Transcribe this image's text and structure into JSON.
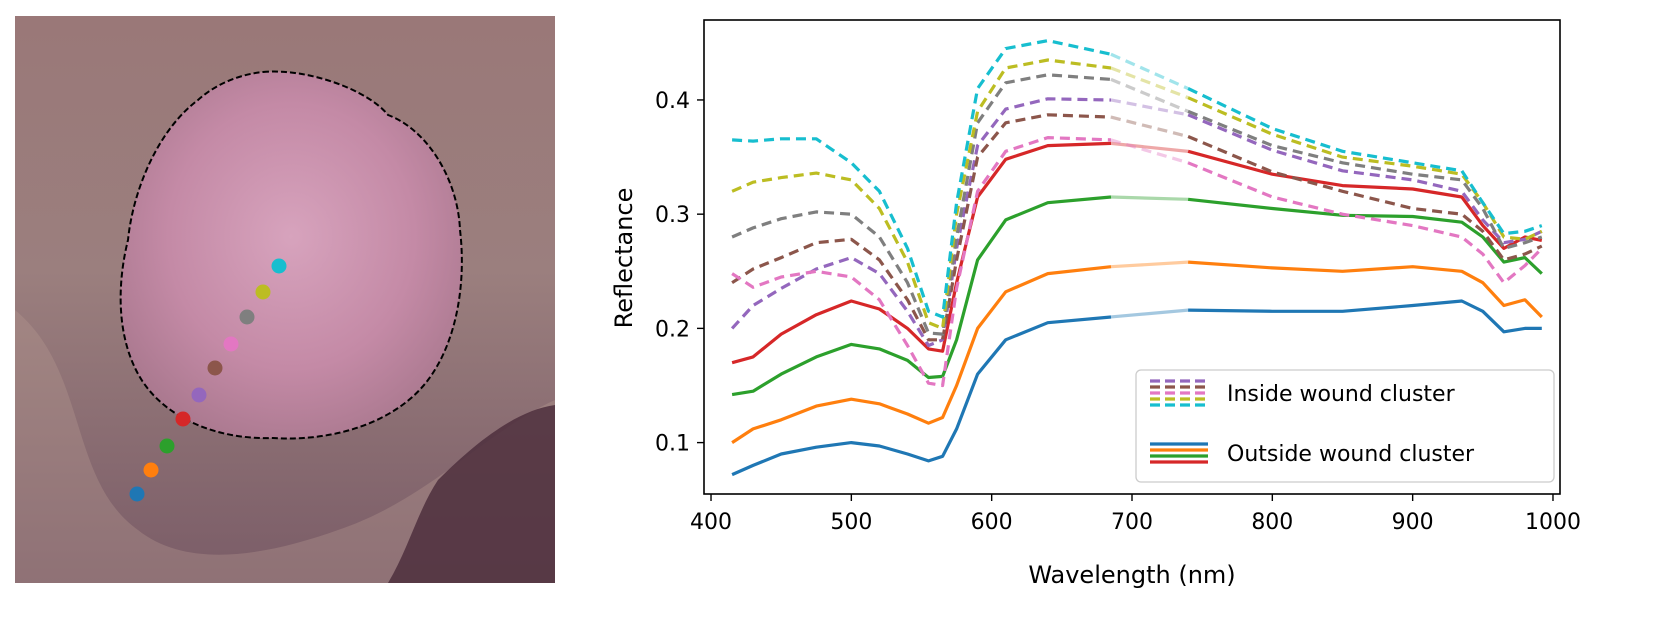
{
  "colors": {
    "blue": "#1f77b4",
    "orange": "#ff7f0e",
    "green": "#2ca02c",
    "red": "#d62728",
    "purple": "#9467bd",
    "brown": "#8c564b",
    "pink": "#e377c2",
    "gray": "#7f7f7f",
    "olive": "#bcbd22",
    "cyan": "#17becf",
    "wound_outline": "#000000",
    "tissue_background": "#8a6b72",
    "wound_fill": "#c48aa6"
  },
  "wound_image": {
    "markers": [
      {
        "color": "#1f77b4"
      },
      {
        "color": "#ff7f0e"
      },
      {
        "color": "#2ca02c"
      },
      {
        "color": "#d62728"
      },
      {
        "color": "#9467bd"
      },
      {
        "color": "#8c564b"
      },
      {
        "color": "#e377c2"
      },
      {
        "color": "#7f7f7f"
      },
      {
        "color": "#bcbd22"
      },
      {
        "color": "#17becf"
      }
    ]
  },
  "chart_data": {
    "type": "line",
    "title": "",
    "xlabel": "Wavelength (nm)",
    "ylabel": "Reflectance",
    "xlim": [
      395,
      1005
    ],
    "ylim": [
      0.055,
      0.47
    ],
    "xticks": [
      400,
      500,
      600,
      700,
      800,
      900,
      1000
    ],
    "yticks": [
      0.1,
      0.2,
      0.3,
      0.4
    ],
    "xtick_labels": [
      "400",
      "500",
      "600",
      "700",
      "800",
      "900",
      "1000"
    ],
    "ytick_labels": [
      "0.1",
      "0.2",
      "0.3",
      "0.4"
    ],
    "grid": false,
    "legend_position": "lower-right",
    "gap_band_nm": [
      685,
      740
    ],
    "x": [
      415,
      430,
      450,
      475,
      500,
      520,
      540,
      555,
      565,
      575,
      590,
      610,
      640,
      685,
      740,
      800,
      850,
      900,
      935,
      950,
      965,
      980,
      992
    ],
    "legend": [
      {
        "label": "Inside wound cluster",
        "style": "dashed",
        "colors": [
          "#9467bd",
          "#8c564b",
          "#e377c2",
          "#bcbd22",
          "#17becf"
        ]
      },
      {
        "label": "Outside wound cluster",
        "style": "solid",
        "colors": [
          "#1f77b4",
          "#ff7f0e",
          "#2ca02c",
          "#d62728"
        ]
      }
    ],
    "series": [
      {
        "color": "#1f77b4",
        "style": "solid",
        "values": [
          0.072,
          0.08,
          0.09,
          0.096,
          0.1,
          0.097,
          0.09,
          0.084,
          0.088,
          0.112,
          0.16,
          0.19,
          0.205,
          0.21,
          0.216,
          0.215,
          0.215,
          0.22,
          0.224,
          0.215,
          0.197,
          0.2,
          0.2
        ]
      },
      {
        "color": "#ff7f0e",
        "style": "solid",
        "values": [
          0.1,
          0.112,
          0.12,
          0.132,
          0.138,
          0.134,
          0.125,
          0.117,
          0.122,
          0.15,
          0.2,
          0.232,
          0.248,
          0.254,
          0.258,
          0.253,
          0.25,
          0.254,
          0.25,
          0.24,
          0.22,
          0.225,
          0.21
        ]
      },
      {
        "color": "#2ca02c",
        "style": "solid",
        "values": [
          0.142,
          0.145,
          0.16,
          0.175,
          0.186,
          0.182,
          0.172,
          0.157,
          0.158,
          0.19,
          0.26,
          0.295,
          0.31,
          0.315,
          0.313,
          0.305,
          0.299,
          0.298,
          0.293,
          0.28,
          0.258,
          0.262,
          0.248
        ]
      },
      {
        "color": "#d62728",
        "style": "solid",
        "values": [
          0.17,
          0.175,
          0.195,
          0.212,
          0.224,
          0.217,
          0.2,
          0.182,
          0.18,
          0.24,
          0.315,
          0.348,
          0.36,
          0.362,
          0.355,
          0.335,
          0.325,
          0.322,
          0.315,
          0.29,
          0.27,
          0.28,
          0.277
        ]
      },
      {
        "color": "#9467bd",
        "style": "dashed",
        "values": [
          0.2,
          0.22,
          0.235,
          0.252,
          0.262,
          0.248,
          0.215,
          0.185,
          0.19,
          0.27,
          0.36,
          0.392,
          0.401,
          0.4,
          0.387,
          0.356,
          0.338,
          0.33,
          0.32,
          0.295,
          0.275,
          0.278,
          0.285
        ]
      },
      {
        "color": "#8c564b",
        "style": "dashed",
        "values": [
          0.24,
          0.252,
          0.262,
          0.275,
          0.278,
          0.26,
          0.225,
          0.19,
          0.19,
          0.26,
          0.35,
          0.38,
          0.387,
          0.385,
          0.368,
          0.337,
          0.32,
          0.305,
          0.3,
          0.285,
          0.26,
          0.265,
          0.272
        ]
      },
      {
        "color": "#e377c2",
        "style": "dashed",
        "values": [
          0.248,
          0.236,
          0.245,
          0.25,
          0.245,
          0.225,
          0.185,
          0.152,
          0.15,
          0.235,
          0.32,
          0.355,
          0.367,
          0.365,
          0.345,
          0.315,
          0.3,
          0.29,
          0.28,
          0.265,
          0.24,
          0.255,
          0.27
        ]
      },
      {
        "color": "#7f7f7f",
        "style": "dashed",
        "values": [
          0.28,
          0.288,
          0.296,
          0.302,
          0.3,
          0.28,
          0.24,
          0.196,
          0.195,
          0.28,
          0.38,
          0.415,
          0.422,
          0.418,
          0.39,
          0.36,
          0.345,
          0.335,
          0.33,
          0.305,
          0.27,
          0.275,
          0.28
        ]
      },
      {
        "color": "#bcbd22",
        "style": "dashed",
        "values": [
          0.32,
          0.328,
          0.332,
          0.336,
          0.33,
          0.305,
          0.258,
          0.205,
          0.2,
          0.3,
          0.39,
          0.428,
          0.435,
          0.428,
          0.402,
          0.37,
          0.35,
          0.342,
          0.335,
          0.31,
          0.28,
          0.278,
          0.285
        ]
      },
      {
        "color": "#17becf",
        "style": "dashed",
        "values": [
          0.365,
          0.364,
          0.366,
          0.366,
          0.345,
          0.32,
          0.27,
          0.215,
          0.21,
          0.31,
          0.41,
          0.445,
          0.452,
          0.44,
          0.41,
          0.375,
          0.355,
          0.345,
          0.338,
          0.31,
          0.283,
          0.285,
          0.29
        ]
      }
    ]
  }
}
